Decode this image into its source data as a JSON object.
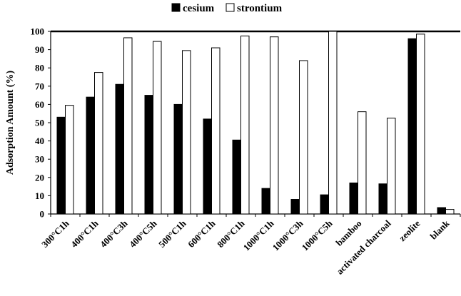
{
  "chart_data": {
    "type": "bar",
    "ylabel": "Adsorption Amount (%)",
    "ylim": [
      0,
      100
    ],
    "yticks": [
      "0",
      "10",
      "20",
      "30",
      "40",
      "50",
      "60",
      "70",
      "80",
      "90",
      "100"
    ],
    "categories": [
      "300°C1h",
      "400°C1h",
      "400°C3h",
      "400°C5h",
      "500°C1h",
      "600°C1h",
      "800°C1h",
      "1000°C1h",
      "1000°C3h",
      "1000°C5h",
      "bamboo",
      "activated charcoal",
      "zeolite",
      "blank"
    ],
    "series": [
      {
        "name": "cesium",
        "color": "#000000",
        "values": [
          53,
          64,
          71,
          65,
          60,
          52,
          40.5,
          14,
          8,
          10.5,
          17,
          16.5,
          96,
          3.5
        ]
      },
      {
        "name": "strontium",
        "color": "#ffffff",
        "values": [
          59.5,
          77.5,
          96.5,
          94.5,
          89.5,
          91,
          97.5,
          97,
          84,
          100,
          56,
          52.5,
          98.5,
          2.5
        ]
      }
    ],
    "legend_position": "top-center",
    "grid": false
  }
}
